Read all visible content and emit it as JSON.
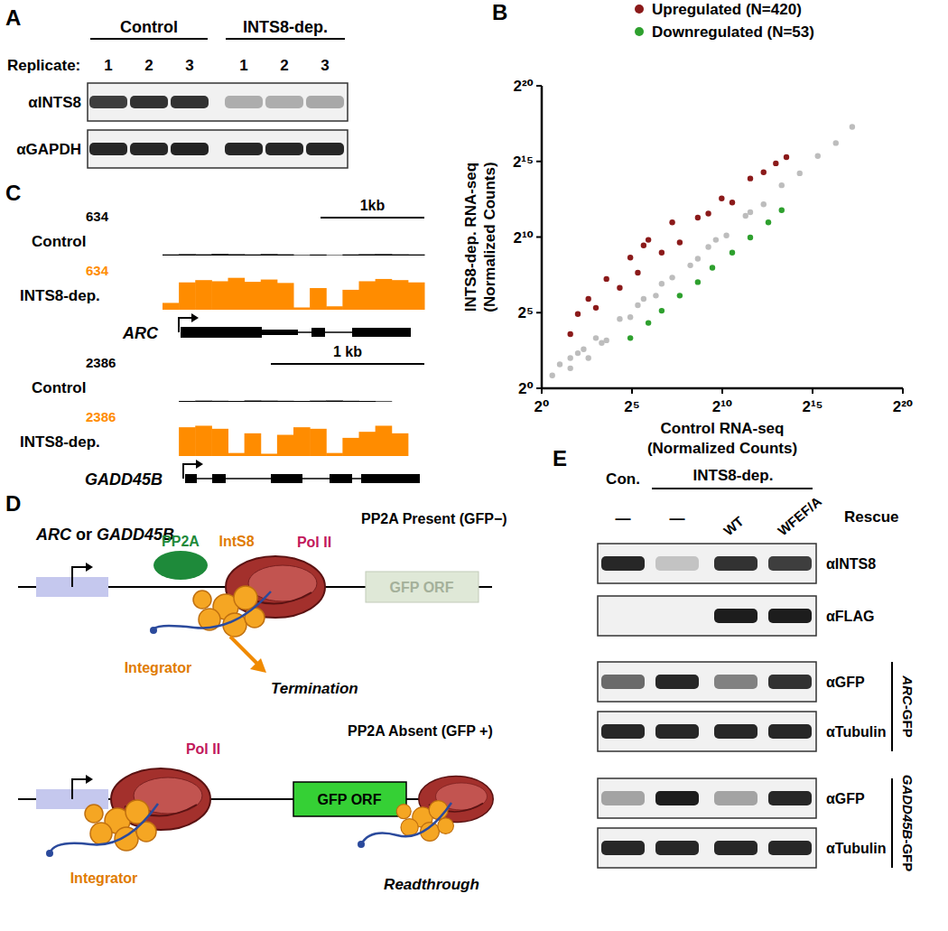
{
  "panel_labels": [
    "A",
    "B",
    "C",
    "D",
    "E"
  ],
  "panel_a": {
    "groups": [
      "Control",
      "INTS8-dep."
    ],
    "replicate_label": "Replicate:",
    "replicates": [
      1,
      2,
      3,
      1,
      2,
      3
    ],
    "blots": [
      {
        "name": "αINTS8",
        "intensity": [
          0.8,
          0.85,
          0.85,
          0.3,
          0.3,
          0.32
        ]
      },
      {
        "name": "αGAPDH",
        "intensity": [
          0.9,
          0.9,
          0.92,
          0.9,
          0.9,
          0.9
        ]
      }
    ]
  },
  "chart_data": {
    "type": "scatter",
    "log": true,
    "x_label": [
      "Control RNA-seq",
      "(Normalized Counts)"
    ],
    "y_label": [
      "INTS8-dep. RNA-seq",
      "(Normalized Counts)"
    ],
    "xlim": [
      1,
      1048576
    ],
    "ylim": [
      1,
      1048576
    ],
    "xticks": [
      {
        "value": 1,
        "label": "2⁰"
      },
      {
        "value": 32,
        "label": "2⁵"
      },
      {
        "value": 1024,
        "label": "2¹⁰"
      },
      {
        "value": 32768,
        "label": "2¹⁵"
      },
      {
        "value": 1048576,
        "label": "2²⁰"
      }
    ],
    "yticks": [
      {
        "value": 1,
        "label": "2⁰"
      },
      {
        "value": 32,
        "label": "2⁵"
      },
      {
        "value": 1024,
        "label": "2¹⁰"
      },
      {
        "value": 32768,
        "label": "2¹⁵"
      },
      {
        "value": 1048576,
        "label": "2²⁰"
      }
    ],
    "legend": "top",
    "marker": "circle",
    "series": [
      {
        "color": "#bdbdbd",
        "x": [
          1.5,
          2,
          3,
          3,
          4,
          5,
          6,
          8,
          10,
          12,
          20,
          30,
          40,
          50,
          80,
          100,
          150,
          300,
          400,
          600,
          800,
          1200,
          2500,
          3000,
          5000,
          10000,
          20000,
          40000,
          80000,
          150000
        ],
        "values": [
          1.8,
          3,
          2.5,
          4,
          5,
          6,
          4,
          10,
          8,
          9,
          24,
          26,
          45,
          60,
          70,
          120,
          160,
          280,
          380,
          650,
          900,
          1100,
          2700,
          3200,
          4600,
          11000,
          19000,
          42000,
          76000,
          160000
        ]
      },
      {
        "name": "Upregulated (N=420)",
        "color": "#8b1a1a",
        "x": [
          3,
          4,
          6,
          8,
          12,
          20,
          30,
          40,
          50,
          60,
          100,
          150,
          200,
          400,
          600,
          1000,
          1500,
          3000,
          5000,
          8000,
          12000
        ],
        "values": [
          12,
          30,
          60,
          40,
          150,
          100,
          400,
          200,
          700,
          900,
          500,
          2000,
          800,
          2500,
          3000,
          6000,
          5000,
          15000,
          20000,
          30000,
          40000
        ]
      },
      {
        "name": "Downregulated (N=53)",
        "color": "#2ea02e",
        "x": [
          30,
          60,
          100,
          200,
          400,
          700,
          1500,
          3000,
          6000,
          10000
        ],
        "values": [
          10,
          20,
          35,
          70,
          130,
          250,
          500,
          1000,
          2000,
          3500
        ]
      }
    ]
  },
  "panel_c": {
    "loci": [
      {
        "gene": "ARC",
        "scale_bar": "1kb",
        "tracks": [
          {
            "name": "Control",
            "scale": 634,
            "color": "#000000",
            "coverage": [
              20,
              25,
              22,
              28,
              24,
              20,
              26,
              22,
              10,
              18,
              8,
              20,
              24,
              26,
              22,
              20
            ]
          },
          {
            "name": "INTS8-dep.",
            "scale": 634,
            "color": "#ff8c00",
            "coverage": [
              120,
              480,
              520,
              500,
              560,
              490,
              530,
              470,
              40,
              380,
              60,
              350,
              500,
              540,
              520,
              480
            ]
          }
        ]
      },
      {
        "gene": "GADD45B",
        "scale_bar": "1 kb",
        "tracks": [
          {
            "name": "Control",
            "scale": 2386,
            "color": "#000000",
            "coverage": [
              0,
              60,
              80,
              70,
              60,
              90,
              80,
              70,
              60,
              80,
              90,
              70,
              60,
              40,
              0,
              0
            ]
          },
          {
            "name": "INTS8-dep.",
            "scale": 2386,
            "color": "#ff8c00",
            "coverage": [
              0,
              1900,
              2000,
              1800,
              200,
              1500,
              150,
              1400,
              1900,
              1800,
              200,
              1200,
              1600,
              2000,
              1500,
              0
            ]
          }
        ]
      }
    ]
  },
  "panel_d": {
    "gene": "ARC or GADD45B",
    "top": {
      "pp2a": "PP2A",
      "ints8": "IntS8",
      "pol2": "Pol II",
      "state": "PP2A Present (GFP−)",
      "orf": "GFP ORF",
      "integrator": "Integrator",
      "outcome": "Termination"
    },
    "bottom": {
      "pol2": "Pol II",
      "state": "PP2A Absent (GFP +)",
      "orf": "GFP ORF",
      "integrator": "Integrator",
      "outcome": "Readthrough"
    }
  },
  "panel_e": {
    "control": "Con.",
    "treatment": "INTS8-dep.",
    "rescue_label": "Rescue",
    "rescues": [
      "—",
      "—",
      "WT",
      "WFEF/A"
    ],
    "blots": [
      {
        "name": "αINTS8",
        "intensity": [
          0.9,
          0.2,
          0.85,
          0.8
        ]
      },
      {
        "name": "αFLAG",
        "intensity": [
          0,
          0,
          0.95,
          0.95
        ]
      },
      {
        "name": "αGFP",
        "intensity": [
          0.6,
          0.9,
          0.5,
          0.85
        ]
      },
      {
        "name": "αTubulin",
        "intensity": [
          0.9,
          0.9,
          0.9,
          0.9
        ]
      },
      {
        "name": "αGFP",
        "intensity": [
          0.35,
          0.95,
          0.35,
          0.9
        ]
      },
      {
        "name": "αTubulin",
        "intensity": [
          0.9,
          0.9,
          0.9,
          0.9
        ]
      }
    ],
    "reporters": [
      "ARC-GFP",
      "GADD45B-GFP"
    ]
  }
}
